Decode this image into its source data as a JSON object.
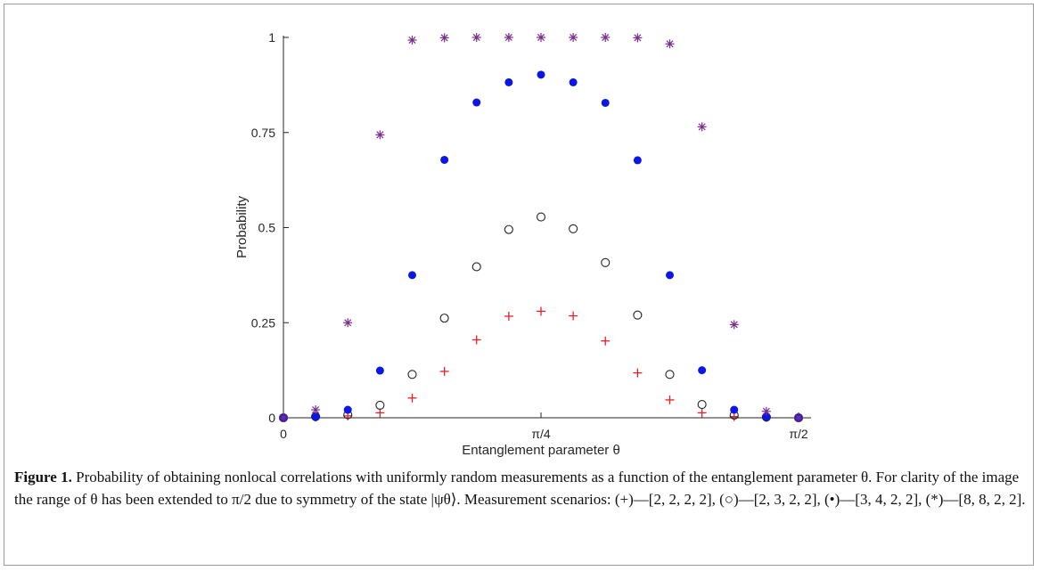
{
  "chart_data": {
    "type": "scatter",
    "xlabel": "Entanglement parameter θ",
    "ylabel": "Probability",
    "xlim": [
      0,
      1.5708
    ],
    "ylim": [
      0,
      1
    ],
    "x_ticks": [
      {
        "value": 0,
        "label": "0"
      },
      {
        "value": 0.7854,
        "label": "π/4"
      },
      {
        "value": 1.5708,
        "label": "π/2"
      }
    ],
    "y_ticks": [
      {
        "value": 0,
        "label": "0"
      },
      {
        "value": 0.25,
        "label": "0.25"
      },
      {
        "value": 0.5,
        "label": "0.5"
      },
      {
        "value": 0.75,
        "label": "0.75"
      },
      {
        "value": 1,
        "label": "1"
      }
    ],
    "grid": false,
    "x": [
      0,
      0.0982,
      0.1963,
      0.2945,
      0.3927,
      0.4909,
      0.589,
      0.6872,
      0.7854,
      0.8836,
      0.9817,
      1.0799,
      1.1781,
      1.2763,
      1.3744,
      1.4726,
      1.5708
    ],
    "series": [
      {
        "marker": "plus",
        "color": "#e8202a",
        "values": [
          0,
          0.002,
          0.005,
          0.013,
          0.052,
          0.122,
          0.205,
          0.267,
          0.28,
          0.268,
          0.202,
          0.118,
          0.047,
          0.013,
          0.003,
          0.001,
          0
        ]
      },
      {
        "marker": "open-circle",
        "color": "#222222",
        "values": [
          0,
          0.003,
          0.008,
          0.033,
          0.114,
          0.262,
          0.397,
          0.495,
          0.528,
          0.497,
          0.408,
          0.27,
          0.114,
          0.035,
          0.007,
          0.002,
          0
        ]
      },
      {
        "marker": "filled-dot",
        "color": "#0a17e6",
        "values": [
          0,
          0.003,
          0.021,
          0.124,
          0.375,
          0.678,
          0.829,
          0.882,
          0.902,
          0.882,
          0.828,
          0.677,
          0.375,
          0.125,
          0.021,
          0.003,
          0
        ]
      },
      {
        "marker": "asterisk",
        "color": "#7b2c8e",
        "values": [
          0,
          0.021,
          0.25,
          0.744,
          0.993,
          0.999,
          1,
          1,
          1,
          1,
          1,
          0.999,
          0.983,
          0.765,
          0.245,
          0.017,
          0
        ]
      }
    ]
  },
  "caption": {
    "label": "Figure 1.",
    "text": "Probability of obtaining nonlocal correlations with uniformly random measurements as a function of the entanglement parameter θ. For clarity of the image the range of θ has been extended to π/2 due to symmetry of the state |ψθ⟩. Measurement scenarios: (+)—[2, 2, 2, 2], (○)—[2, 3, 2, 2], (•)—[3, 4, 2, 2], (*)—[8, 8, 2, 2]."
  }
}
